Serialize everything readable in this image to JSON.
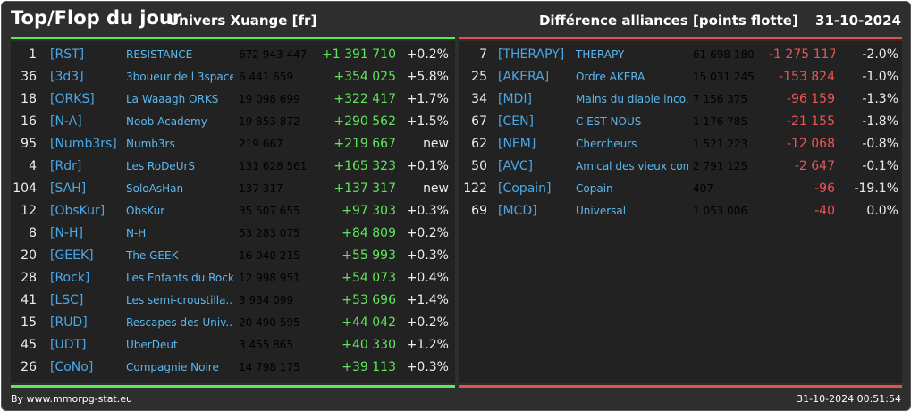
{
  "header": {
    "title": "Top/Flop du jour",
    "universe": "Univers Xuange [fr]",
    "subtitle": "Différence alliances [points flotte]",
    "date": "31-10-2024"
  },
  "colors": {
    "positive": "#5fe65a",
    "negative": "#ef5454",
    "tag": "#4aa8e8",
    "background": "#2e2e2e"
  },
  "top": [
    {
      "rank": "1",
      "tag": "[RST]",
      "name": "RESISTANCE",
      "points": "672 943 447",
      "diff": "+1 391 710",
      "pct": "+0.2%"
    },
    {
      "rank": "36",
      "tag": "[3d3]",
      "name": "3boueur de l 3space",
      "points": "6 441 659",
      "diff": "+354 025",
      "pct": "+5.8%"
    },
    {
      "rank": "18",
      "tag": "[ORKS]",
      "name": "La Waaagh ORKS",
      "points": "19 098 699",
      "diff": "+322 417",
      "pct": "+1.7%"
    },
    {
      "rank": "16",
      "tag": "[N-A]",
      "name": "Noob Academy",
      "points": "19 853 872",
      "diff": "+290 562",
      "pct": "+1.5%"
    },
    {
      "rank": "95",
      "tag": "[Numb3rs]",
      "name": "Numb3rs",
      "points": "219 667",
      "diff": "+219 667",
      "pct": "new"
    },
    {
      "rank": "4",
      "tag": "[Rdr]",
      "name": "Les RoDeUrS",
      "points": "131 628 561",
      "diff": "+165 323",
      "pct": "+0.1%"
    },
    {
      "rank": "104",
      "tag": "[SAH]",
      "name": "SoloAsHan",
      "points": "137 317",
      "diff": "+137 317",
      "pct": "new"
    },
    {
      "rank": "12",
      "tag": "[ObsKur]",
      "name": "ObsKur",
      "points": "35 507 655",
      "diff": "+97 303",
      "pct": "+0.3%"
    },
    {
      "rank": "8",
      "tag": "[N-H]",
      "name": "N-H",
      "points": "53 283 075",
      "diff": "+84 809",
      "pct": "+0.2%"
    },
    {
      "rank": "20",
      "tag": "[GEEK]",
      "name": "The GEEK",
      "points": "16 940 215",
      "diff": "+55 993",
      "pct": "+0.3%"
    },
    {
      "rank": "28",
      "tag": "[Rock]",
      "name": "Les Enfants du Rock",
      "points": "12 998 951",
      "diff": "+54 073",
      "pct": "+0.4%"
    },
    {
      "rank": "41",
      "tag": "[LSC]",
      "name": "Les semi-croustilla...",
      "points": "3 934 099",
      "diff": "+53 696",
      "pct": "+1.4%"
    },
    {
      "rank": "15",
      "tag": "[RUD]",
      "name": "Rescapes des Univ...",
      "points": "20 490 595",
      "diff": "+44 042",
      "pct": "+0.2%"
    },
    {
      "rank": "45",
      "tag": "[UDT]",
      "name": "UberDeut",
      "points": "3 455 865",
      "diff": "+40 330",
      "pct": "+1.2%"
    },
    {
      "rank": "26",
      "tag": "[CoNo]",
      "name": "Compagnie Noire",
      "points": "14 798 175",
      "diff": "+39 113",
      "pct": "+0.3%"
    }
  ],
  "flop": [
    {
      "rank": "7",
      "tag": "[THERAPY]",
      "name": "THERAPY",
      "points": "61 698 180",
      "diff": "-1 275 117",
      "pct": "-2.0%"
    },
    {
      "rank": "25",
      "tag": "[AKERA]",
      "name": "Ordre AKERA",
      "points": "15 031 245",
      "diff": "-153 824",
      "pct": "-1.0%"
    },
    {
      "rank": "34",
      "tag": "[MDI]",
      "name": "Mains du diable inco...",
      "points": "7 156 375",
      "diff": "-96 159",
      "pct": "-1.3%"
    },
    {
      "rank": "67",
      "tag": "[CEN]",
      "name": "C EST NOUS",
      "points": "1 176 785",
      "diff": "-21 155",
      "pct": "-1.8%"
    },
    {
      "rank": "62",
      "tag": "[NEM]",
      "name": "Chercheurs",
      "points": "1 521 223",
      "diff": "-12 068",
      "pct": "-0.8%"
    },
    {
      "rank": "50",
      "tag": "[AVC]",
      "name": "Amical des vieux con",
      "points": "2 791 125",
      "diff": "-2 647",
      "pct": "-0.1%"
    },
    {
      "rank": "122",
      "tag": "[Copain]",
      "name": "Copain",
      "points": "407",
      "diff": "-96",
      "pct": "-19.1%"
    },
    {
      "rank": "69",
      "tag": "[MCD]",
      "name": "Universal",
      "points": "1 053 006",
      "diff": "-40",
      "pct": "0.0%"
    }
  ],
  "footer": {
    "source": "By www.mmorpg-stat.eu",
    "timestamp": "31-10-2024 00:51:54"
  }
}
